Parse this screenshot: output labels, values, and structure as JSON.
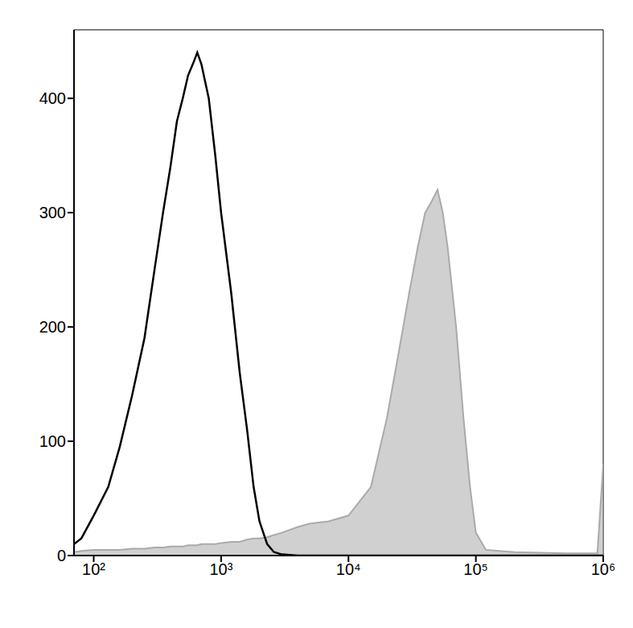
{
  "chart_data": {
    "type": "line",
    "log": "x",
    "xlim": [
      70,
      1000000
    ],
    "ylim": [
      0,
      460
    ],
    "xticks": [
      {
        "value": 100,
        "label": "10²"
      },
      {
        "value": 1000,
        "label": "10³"
      },
      {
        "value": 10000,
        "label": "10⁴"
      },
      {
        "value": 100000,
        "label": "10⁵"
      },
      {
        "value": 1000000,
        "label": "10⁶"
      }
    ],
    "yticks": [
      0,
      100,
      200,
      300,
      400
    ],
    "x": [
      70,
      80,
      100,
      130,
      160,
      200,
      250,
      300,
      350,
      400,
      450,
      500,
      550,
      600,
      650,
      700,
      800,
      900,
      1000,
      1200,
      1400,
      1600,
      1800,
      2000,
      2300,
      2600,
      3000,
      4000,
      5000,
      7000,
      10000,
      15000,
      20000,
      25000,
      30000,
      35000,
      40000,
      45000,
      50000,
      55000,
      60000,
      70000,
      80000,
      90000,
      100000,
      120000,
      200000,
      500000,
      900000,
      1000000
    ],
    "series": [
      {
        "type": "area",
        "color": "#aaaaaa",
        "values": [
          3,
          4,
          5,
          5,
          5,
          6,
          6,
          7,
          7,
          8,
          8,
          8,
          9,
          9,
          9,
          10,
          10,
          10,
          11,
          12,
          12,
          14,
          15,
          15,
          16,
          18,
          20,
          25,
          28,
          30,
          35,
          60,
          120,
          180,
          230,
          270,
          300,
          310,
          320,
          300,
          270,
          200,
          120,
          60,
          20,
          5,
          3,
          2,
          2,
          80
        ]
      },
      {
        "type": "line",
        "color": "#000000",
        "values": [
          10,
          15,
          35,
          60,
          95,
          140,
          190,
          250,
          300,
          340,
          380,
          400,
          420,
          430,
          440,
          430,
          400,
          350,
          300,
          230,
          160,
          110,
          60,
          30,
          10,
          3,
          1,
          0,
          0,
          0,
          0,
          0,
          0,
          0,
          0,
          0,
          0,
          0,
          0,
          0,
          0,
          0,
          0,
          0,
          0,
          0,
          0,
          0,
          0,
          0
        ]
      }
    ]
  }
}
